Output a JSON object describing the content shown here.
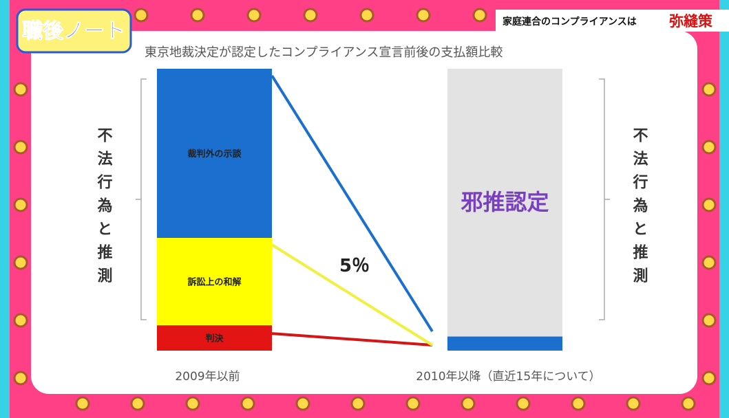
{
  "show": {
    "logo": "職後ノート",
    "banner": "家庭連合のコンプライアンスは",
    "banner_emphasis": "弥縫策"
  },
  "chart_data": {
    "type": "bar",
    "stacked": true,
    "title": "東京地裁決定が認定したコンプライアンス宣言前後の支払額比較",
    "categories": [
      "2009年以前",
      "2010年以降（直近15年について）"
    ],
    "series": [
      {
        "name": "判決",
        "color": "#e31414",
        "values": [
          9,
          null
        ]
      },
      {
        "name": "訴訟上の和解",
        "color": "#ffff00",
        "values": [
          31,
          null
        ]
      },
      {
        "name": "裁判外の示談",
        "color": "#1b6fcf",
        "values": [
          60,
          5
        ]
      },
      {
        "name": "邪推認定",
        "color": "#e3e3e3",
        "values": [
          null,
          95
        ]
      }
    ],
    "ylim": [
      0,
      100
    ],
    "annotation": "5％",
    "side_label": "不法行為と推測"
  }
}
